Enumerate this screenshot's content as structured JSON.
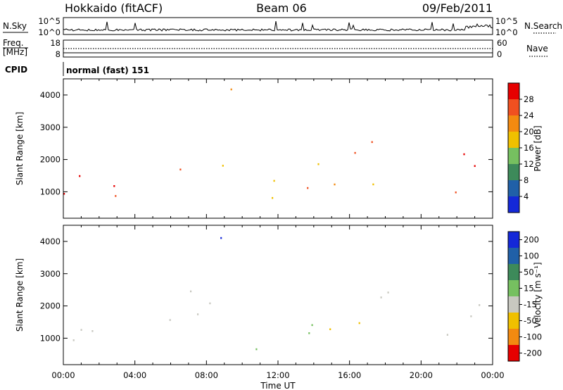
{
  "header": {
    "station": "Hokkaido (fitACF)",
    "beam": "Beam 06",
    "date": "09/Feb/2011"
  },
  "status_panels": {
    "nsky_label": "N.Sky",
    "nsearch_label": "N.Search",
    "noise_ticks_left": [
      "10^5",
      "10^0"
    ],
    "noise_ticks_right": [
      "10^5",
      "10^0"
    ],
    "freq_label_line1": "Freq.",
    "freq_label_line2": "[MHz]",
    "freq_ticks": [
      "18",
      "8"
    ],
    "nave_label": "Nave",
    "nave_ticks": [
      "60",
      "0"
    ],
    "cpid_label": "CPID",
    "cpid_value": "normal (fast) 151"
  },
  "chart_data": [
    {
      "type": "heatmap",
      "panel": "power",
      "ylabel": "Slant Range [km]",
      "xlabel": "",
      "ylim": [
        180,
        4500
      ],
      "yticks": [
        "1000",
        "2000",
        "3000",
        "4000"
      ],
      "xticks": [
        "00:00",
        "04:00",
        "08:00",
        "12:00",
        "16:00",
        "20:00",
        "00:00"
      ],
      "colorbar_label": "Power [dB]",
      "colorbar_ticks": [
        "4",
        "8",
        "12",
        "16",
        "20",
        "24",
        "28"
      ],
      "colors": [
        "#1428d8",
        "#2060a8",
        "#3d8a5a",
        "#76c060",
        "#f0c000",
        "#f38a10",
        "#f05020",
        "#e60000"
      ],
      "scatter_regions": [
        {
          "t0": 0.0,
          "t1": 6.8,
          "r0": 800,
          "r1": 1700,
          "level": 28
        },
        {
          "t0": 5.5,
          "t1": 7.6,
          "r0": 1500,
          "r1": 2200,
          "level": 26
        },
        {
          "t0": 7.5,
          "t1": 9.3,
          "r0": 1800,
          "r1": 2700,
          "level": 22
        },
        {
          "t0": 8.4,
          "t1": 10.5,
          "r0": 3900,
          "r1": 4400,
          "level": 20
        },
        {
          "t0": 10.2,
          "t1": 18.2,
          "r0": 550,
          "r1": 1500,
          "level": 20
        },
        {
          "t0": 12.0,
          "t1": 15.2,
          "r0": 1400,
          "r1": 2000,
          "level": 12
        },
        {
          "t0": 15.0,
          "t1": 19.4,
          "r0": 2100,
          "r1": 2700,
          "level": 24
        },
        {
          "t0": 21.0,
          "t1": 24.0,
          "r0": 800,
          "r1": 2300,
          "level": 28
        }
      ]
    },
    {
      "type": "heatmap",
      "panel": "velocity",
      "ylabel": "Slant Range [km]",
      "xlabel": "Time UT",
      "ylim": [
        180,
        4500
      ],
      "yticks": [
        "1000",
        "2000",
        "3000",
        "4000"
      ],
      "xticks": [
        "00:00",
        "04:00",
        "08:00",
        "12:00",
        "16:00",
        "20:00",
        "00:00"
      ],
      "colorbar_label": "Velocity [m s⁻¹]",
      "colorbar_ticks": [
        "200",
        "100",
        "50",
        "15",
        "-15",
        "-50",
        "-100",
        "-200"
      ],
      "colors": [
        "#1428d8",
        "#2060a8",
        "#3d8a5a",
        "#76c060",
        "#c8c8c0",
        "#f0c000",
        "#f38a10",
        "#e60000"
      ],
      "scatter_regions": [
        {
          "t0": 0.0,
          "t1": 6.8,
          "r0": 800,
          "r1": 1700,
          "level": 0
        },
        {
          "t0": 5.5,
          "t1": 9.5,
          "r0": 1500,
          "r1": 2700,
          "level": 0
        },
        {
          "t0": 8.4,
          "t1": 10.5,
          "r0": 3900,
          "r1": 4400,
          "level": 200
        },
        {
          "t0": 10.2,
          "t1": 14.5,
          "r0": 550,
          "r1": 1500,
          "level": 30
        },
        {
          "t0": 14.5,
          "t1": 18.3,
          "r0": 700,
          "r1": 1500,
          "level": -40
        },
        {
          "t0": 15.0,
          "t1": 19.4,
          "r0": 2100,
          "r1": 2700,
          "level": 0
        },
        {
          "t0": 21.0,
          "t1": 24.0,
          "r0": 800,
          "r1": 2300,
          "level": 10
        }
      ]
    }
  ]
}
